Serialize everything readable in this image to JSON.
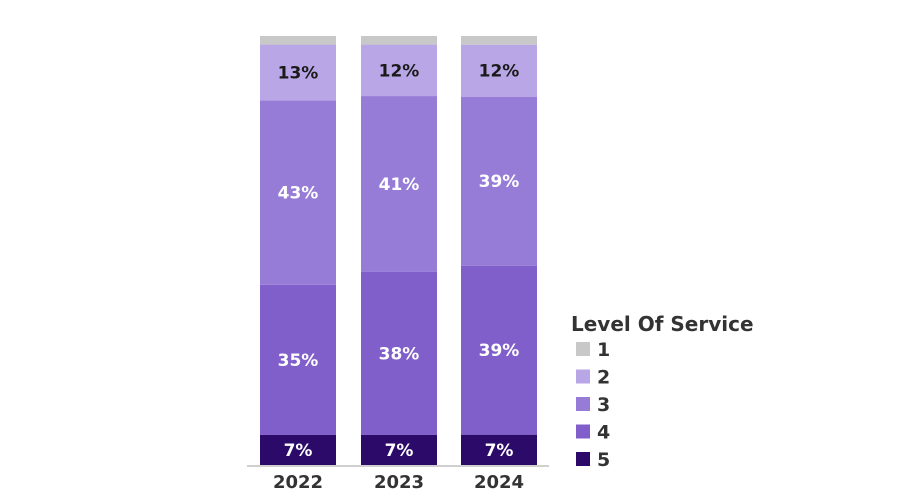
{
  "chart_data": {
    "type": "bar",
    "stacked": true,
    "categories": [
      "2022",
      "2023",
      "2024"
    ],
    "series": [
      {
        "name": "5",
        "values": [
          7,
          7,
          7
        ],
        "labels": [
          "7%",
          "7%",
          "7%"
        ],
        "color": "#2c0a6a",
        "label_color": "#ffffff"
      },
      {
        "name": "4",
        "values": [
          35,
          38,
          39
        ],
        "labels": [
          "35%",
          "38%",
          "39%"
        ],
        "color": "#805fcb",
        "label_color": "#ffffff"
      },
      {
        "name": "3",
        "values": [
          43,
          41,
          39
        ],
        "labels": [
          "43%",
          "41%",
          "39%"
        ],
        "color": "#967cd7",
        "label_color": "#ffffff"
      },
      {
        "name": "2",
        "values": [
          13,
          12,
          12
        ],
        "labels": [
          "13%",
          "12%",
          "12%"
        ],
        "color": "#b9a6e6",
        "label_color": "#1a1a1a"
      },
      {
        "name": "1",
        "values": [
          2,
          2,
          2
        ],
        "labels": [
          "",
          "",
          ""
        ],
        "color": "#c8c8c8",
        "label_color": "#1a1a1a"
      }
    ],
    "legend": {
      "title": "Level Of Service",
      "position": "right",
      "order": [
        "1",
        "2",
        "3",
        "4",
        "5"
      ]
    },
    "ylim": [
      0,
      100
    ],
    "grid": false
  }
}
